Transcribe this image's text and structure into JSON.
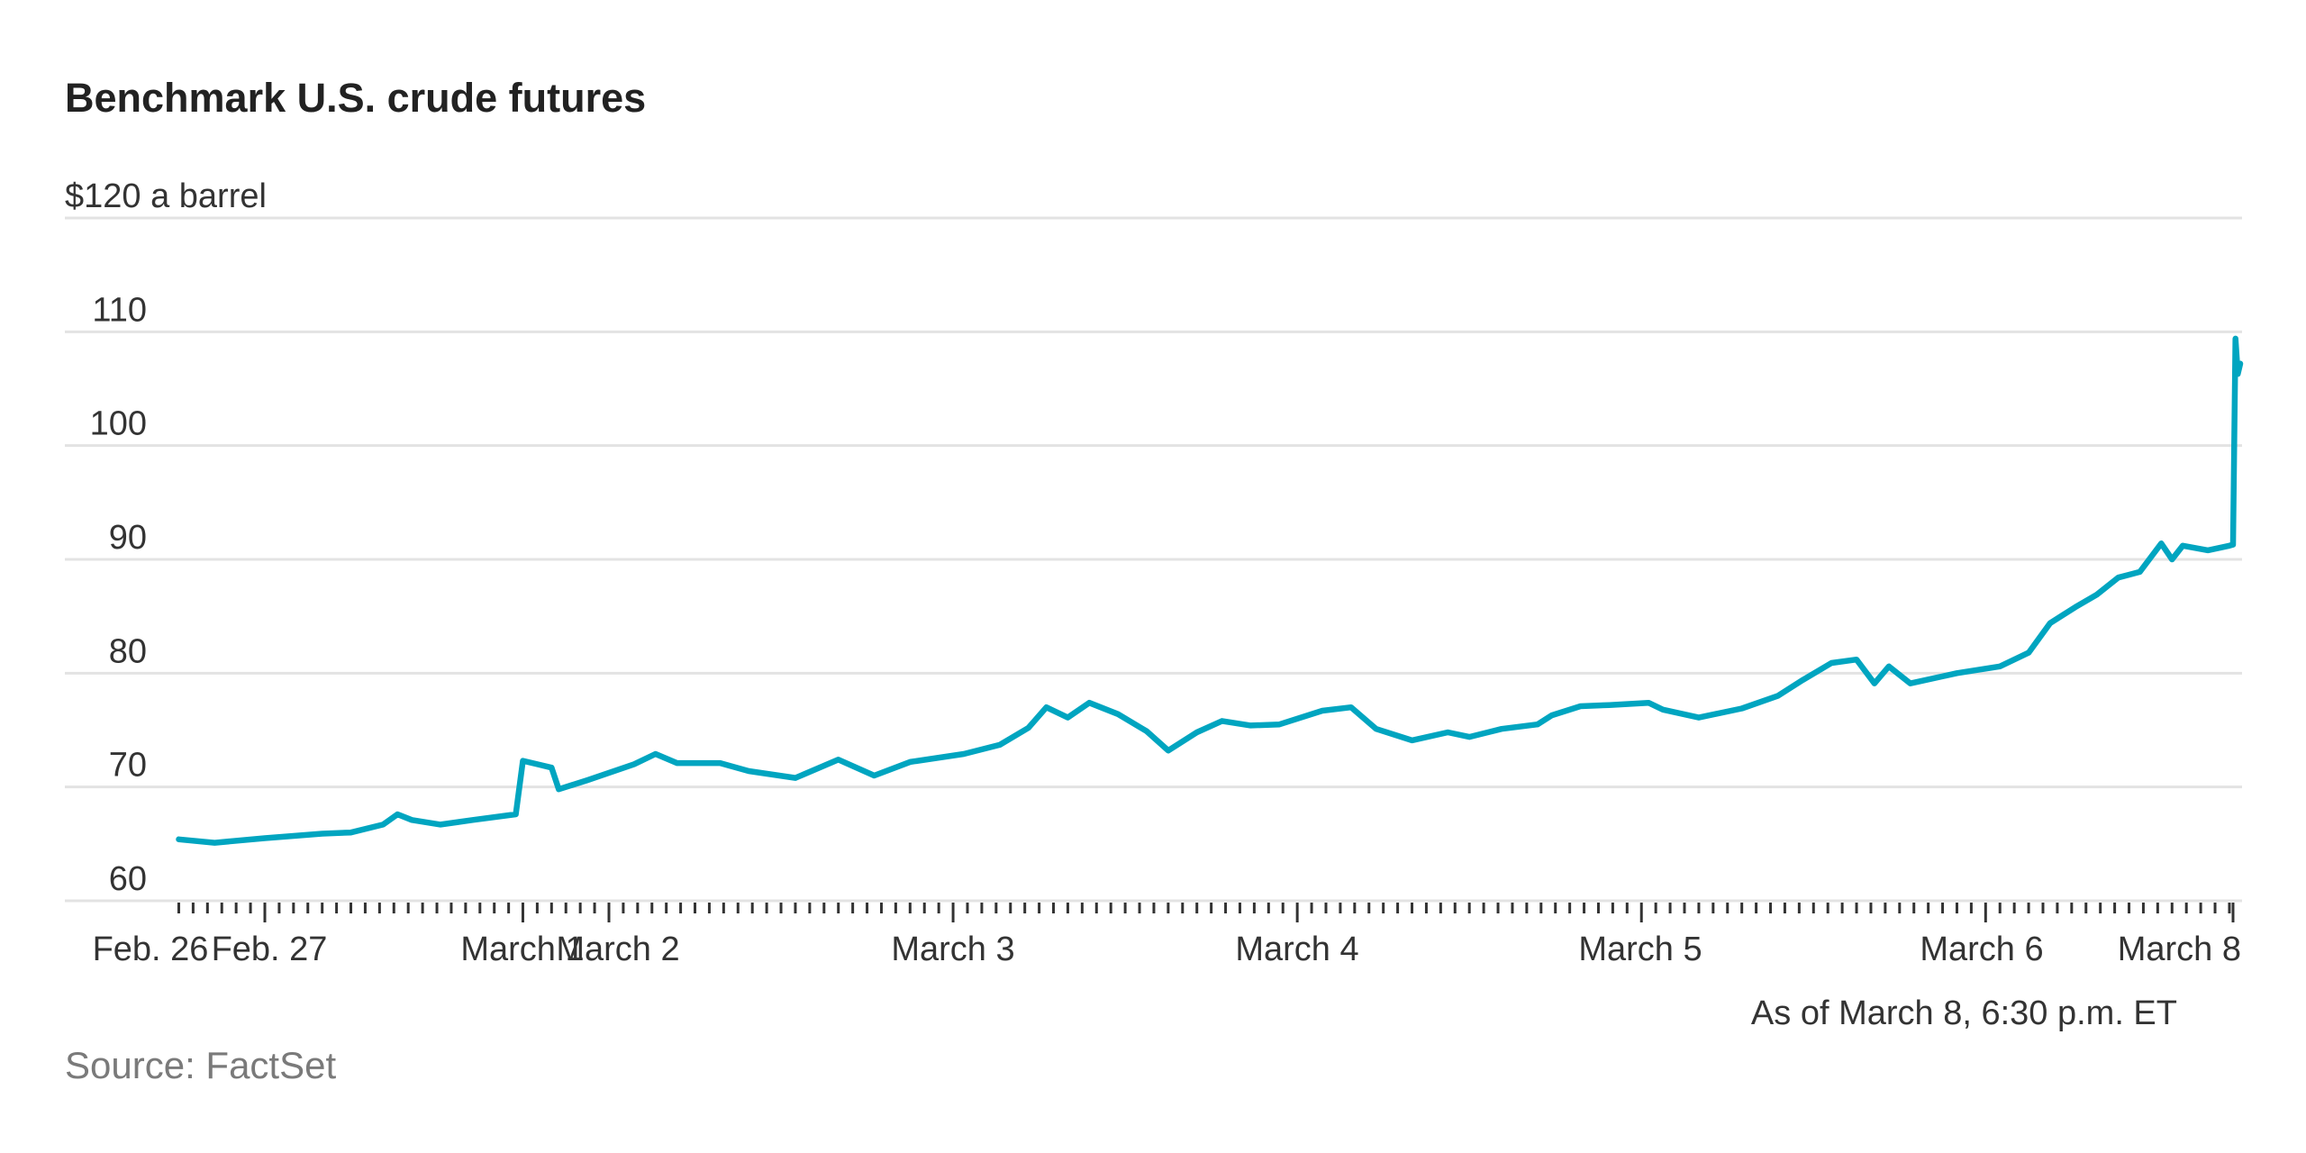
{
  "chart_data": {
    "type": "line",
    "title": "Benchmark U.S. crude futures",
    "ylabel": "$120 a barrel",
    "ylim": [
      60,
      120
    ],
    "yticks": [
      60,
      70,
      80,
      90,
      100,
      110,
      120
    ],
    "ytick_labels": [
      "60",
      "70",
      "80",
      "90",
      "100",
      "110",
      "$120 a barrel"
    ],
    "xtick_labels": [
      "Feb. 26",
      "Feb. 27",
      "March 1",
      "March 2",
      "March 3",
      "March 4",
      "March 5",
      "March 6",
      "March 8"
    ],
    "grid": true,
    "line_color": "#00a5c0",
    "note": "As of March 8, 6:30 p.m. ET",
    "source": "Source: FactSet",
    "series": [
      {
        "x": [
          "02-26 18:00",
          "02-26 20:30",
          "02-27 00:00",
          "02-27 04:00",
          "02-27 06:00",
          "02-27 08:15",
          "02-27 09:15",
          "02-27 10:15",
          "02-27 12:15",
          "02-27 14:30",
          "02-27 17:30",
          "03-01 18:00",
          "03-01 19:00",
          "03-01 20:00",
          "03-01 20:30",
          "03-01 22:30",
          "03-02 01:45",
          "03-02 03:15",
          "03-02 04:45",
          "03-02 07:45",
          "03-02 09:45",
          "03-02 13:00",
          "03-02 16:00",
          "03-02 18:30",
          "03-02 21:00",
          "03-03 00:45",
          "03-03 03:15",
          "03-03 05:15",
          "03-03 06:30",
          "03-03 08:00",
          "03-03 09:30",
          "03-03 11:30",
          "03-03 13:30",
          "03-03 15:00",
          "03-03 17:00",
          "03-03 18:45",
          "03-03 20:45",
          "03-03 22:45",
          "03-04 01:45",
          "03-04 03:45",
          "03-04 05:30",
          "03-04 08:00",
          "03-04 10:30",
          "03-04 12:00",
          "03-04 14:15",
          "03-04 16:45",
          "03-04 17:45",
          "03-04 19:45",
          "03-04 21:45",
          "03-05 00:30",
          "03-05 01:30",
          "03-05 04:00",
          "03-05 07:00",
          "03-05 09:30",
          "03-05 11:15",
          "03-05 13:15",
          "03-05 15:00",
          "03-05 16:15",
          "03-05 17:15",
          "03-05 18:45",
          "03-05 22:00",
          "03-06 01:00",
          "03-06 03:00",
          "03-06 04:30",
          "03-06 06:15",
          "03-06 07:45",
          "03-06 09:15",
          "03-06 10:45",
          "03-06 12:15",
          "03-06 13:00",
          "03-06 13:45",
          "03-06 15:30",
          "03-06 17:00",
          "03-08 18:00",
          "03-08 18:10",
          "03-08 18:20",
          "03-08 18:30"
        ],
        "y": [
          65.4,
          65.1,
          65.5,
          65.9,
          66.0,
          66.7,
          67.6,
          67.1,
          66.7,
          67.1,
          67.6,
          72.3,
          72.0,
          71.7,
          69.8,
          70.6,
          72.0,
          72.9,
          72.1,
          72.1,
          71.4,
          70.8,
          72.4,
          71.0,
          72.2,
          72.9,
          73.7,
          75.2,
          77.0,
          76.1,
          77.4,
          76.4,
          74.9,
          73.2,
          74.8,
          75.8,
          75.4,
          75.5,
          76.7,
          77.0,
          75.1,
          74.1,
          74.8,
          74.4,
          75.1,
          75.5,
          76.3,
          77.1,
          77.2,
          77.4,
          76.8,
          76.1,
          76.9,
          78.0,
          79.4,
          80.9,
          81.2,
          79.1,
          80.6,
          79.1,
          80.0,
          80.6,
          81.8,
          84.4,
          85.8,
          86.9,
          88.4,
          88.9,
          91.4,
          90.0,
          91.2,
          90.8,
          91.2,
          91.3,
          109.4,
          106.3,
          107.2
        ]
      }
    ]
  }
}
